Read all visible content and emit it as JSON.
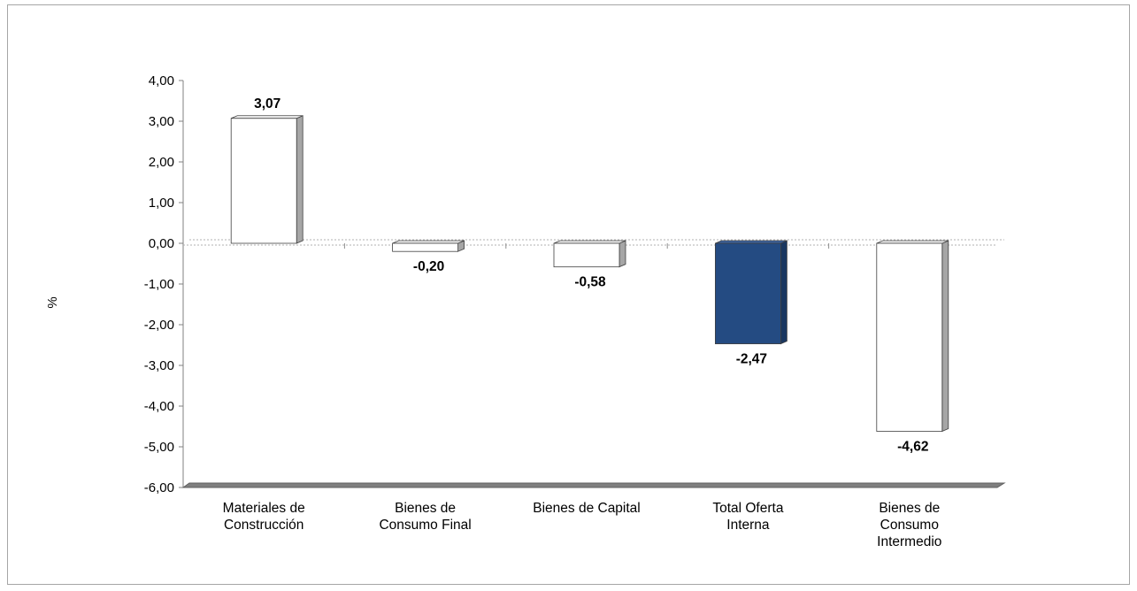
{
  "chart_data": {
    "type": "bar",
    "title": "",
    "xlabel": "",
    "ylabel": "%",
    "ylim": [
      -6,
      4
    ],
    "yticks": [
      4,
      3,
      2,
      1,
      0,
      -1,
      -2,
      -3,
      -4,
      -5,
      -6
    ],
    "ytick_labels": [
      "4,00",
      "3,00",
      "2,00",
      "1,00",
      "0,00",
      "-1,00",
      "-2,00",
      "-3,00",
      "-4,00",
      "-5,00",
      "-6,00"
    ],
    "categories": [
      [
        "Materiales de",
        "Construcción"
      ],
      [
        "Bienes de",
        "Consumo Final"
      ],
      [
        "Bienes de Capital"
      ],
      [
        "Total Oferta",
        "Interna"
      ],
      [
        "Bienes de",
        "Consumo",
        "Intermedio"
      ]
    ],
    "values": [
      3.07,
      -0.2,
      -0.58,
      -2.47,
      -4.62
    ],
    "value_labels": [
      "3,07",
      "-0,20",
      "-0,58",
      "-2,47",
      "-4,62"
    ],
    "highlight_index": 3,
    "grid": false,
    "legend": "none"
  },
  "colors": {
    "bar_fill": "#ffffff",
    "bar_highlight": "#244b82",
    "bar_outline": "#404040",
    "bar_side": "#a6a6a6",
    "floor": "#7f7f7f",
    "zero_line": "#b0b0b0",
    "frame": "#a6a6a6"
  }
}
